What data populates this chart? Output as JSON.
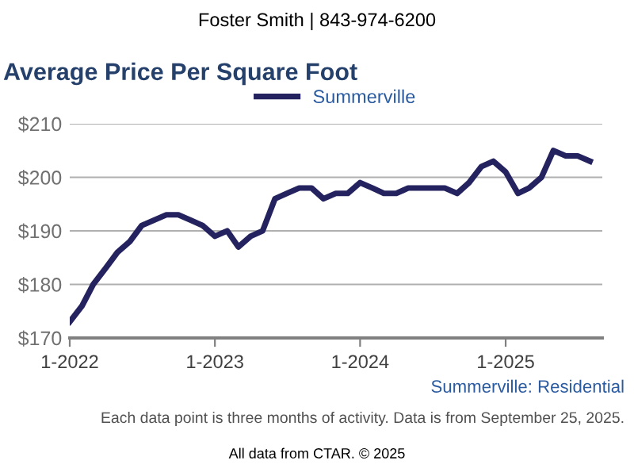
{
  "chart_data": {
    "type": "line",
    "title": "Average Price Per Square Foot",
    "subtitle": "Foster Smith | 843-974-6200",
    "x": [
      "2022-01",
      "2022-02",
      "2022-03",
      "2022-04",
      "2022-05",
      "2022-06",
      "2022-07",
      "2022-08",
      "2022-09",
      "2022-10",
      "2022-11",
      "2022-12",
      "2023-01",
      "2023-02",
      "2023-03",
      "2023-04",
      "2023-05",
      "2023-06",
      "2023-07",
      "2023-08",
      "2023-09",
      "2023-10",
      "2023-11",
      "2023-12",
      "2024-01",
      "2024-02",
      "2024-03",
      "2024-04",
      "2024-05",
      "2024-06",
      "2024-07",
      "2024-08",
      "2024-09",
      "2024-10",
      "2024-11",
      "2024-12",
      "2025-01",
      "2025-02",
      "2025-03",
      "2025-04",
      "2025-05",
      "2025-06",
      "2025-07",
      "2025-08"
    ],
    "series": [
      {
        "name": "Summerville",
        "color": "#25235f",
        "values": [
          173,
          176,
          180,
          183,
          186,
          188,
          191,
          192,
          193,
          193,
          192,
          191,
          189,
          190,
          187,
          189,
          190,
          196,
          197,
          198,
          198,
          196,
          197,
          197,
          199,
          198,
          197,
          197,
          198,
          198,
          198,
          198,
          197,
          199,
          202,
          203,
          201,
          197,
          198,
          200,
          205,
          204,
          204,
          203
        ]
      }
    ],
    "xlim": [
      "2022-01",
      "2025-09"
    ],
    "xticks": [
      {
        "value": "2022-01",
        "label": "1-2022"
      },
      {
        "value": "2023-01",
        "label": "1-2023"
      },
      {
        "value": "2024-01",
        "label": "1-2024"
      },
      {
        "value": "2025-01",
        "label": "1-2025"
      }
    ],
    "ylim": [
      170,
      210
    ],
    "yticks": [
      {
        "value": 170,
        "label": "$170"
      },
      {
        "value": 180,
        "label": "$180"
      },
      {
        "value": 190,
        "label": "$190"
      },
      {
        "value": 200,
        "label": "$200"
      },
      {
        "value": 210,
        "label": "$210"
      }
    ],
    "grid": "y",
    "legend": "top",
    "marker": "none",
    "line_style": "solid",
    "annotations": [
      "Summerville: Residential",
      "Each data point is three months of activity. Data is from September 25, 2025.",
      "All data from CTAR. © 2025"
    ]
  }
}
